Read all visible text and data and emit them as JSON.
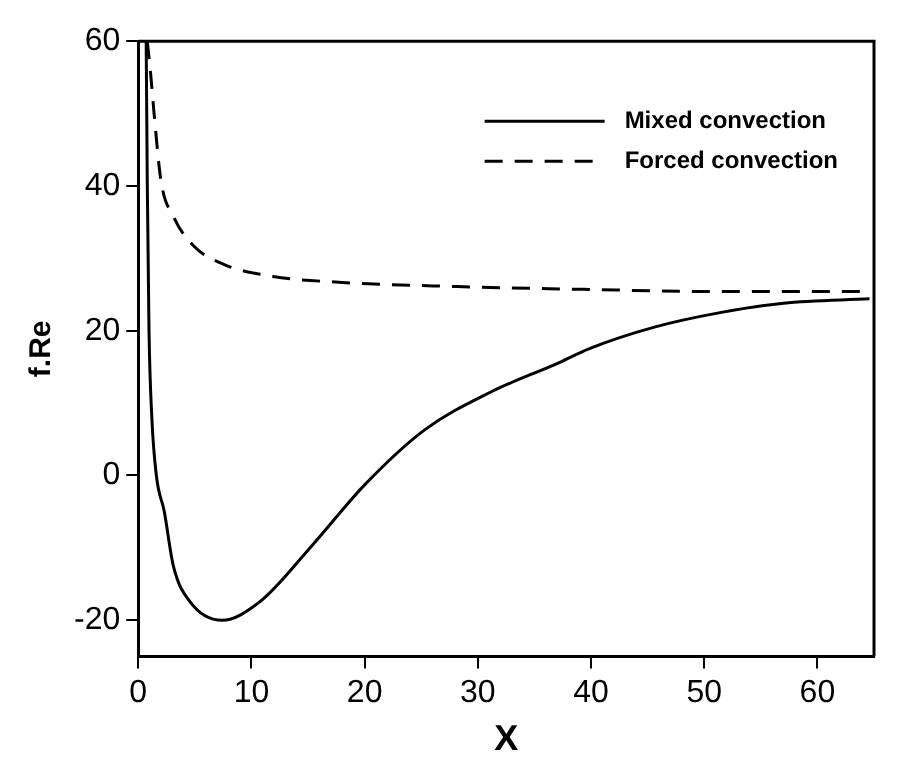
{
  "chart_data": {
    "type": "line",
    "xlabel": "X",
    "ylabel": "f.Re",
    "xlim": [
      0,
      65
    ],
    "xticks": [
      0,
      10,
      20,
      30,
      40,
      50,
      60
    ],
    "ylim": [
      -25,
      60
    ],
    "yticks": [
      -20,
      0,
      20,
      40,
      60
    ],
    "grid": false,
    "legend": "top right",
    "marker": "none",
    "series": [
      {
        "name": "Mixed convection",
        "color": "#000000",
        "line_style": "solid",
        "x": [
          0.7,
          0.8,
          0.95,
          1.2,
          1.6,
          2.3,
          3.1,
          4.6,
          7.4,
          10.7,
          15.4,
          20,
          25.3,
          31.1,
          37.2,
          39.8,
          45.6,
          51.4,
          57,
          64.6
        ],
        "values": [
          60,
          40,
          20,
          8,
          0,
          -5,
          -12.5,
          -17.5,
          -20,
          -17.5,
          -9.6,
          -1.3,
          6.3,
          11.5,
          15.6,
          17.5,
          20.5,
          22.5,
          23.8,
          24.4
        ]
      },
      {
        "name": "Forced convection",
        "color": "#000000",
        "line_style": "dashed",
        "x": [
          0.8,
          1.1,
          1.4,
          2,
          3.1,
          4.9,
          7.5,
          11.9,
          17.7,
          28.2,
          39.8,
          51.4,
          64.6
        ],
        "values": [
          60,
          55.4,
          50,
          40.8,
          35.8,
          31.7,
          29.2,
          27.5,
          26.7,
          26.1,
          25.7,
          25.4,
          25.4
        ]
      }
    ]
  }
}
